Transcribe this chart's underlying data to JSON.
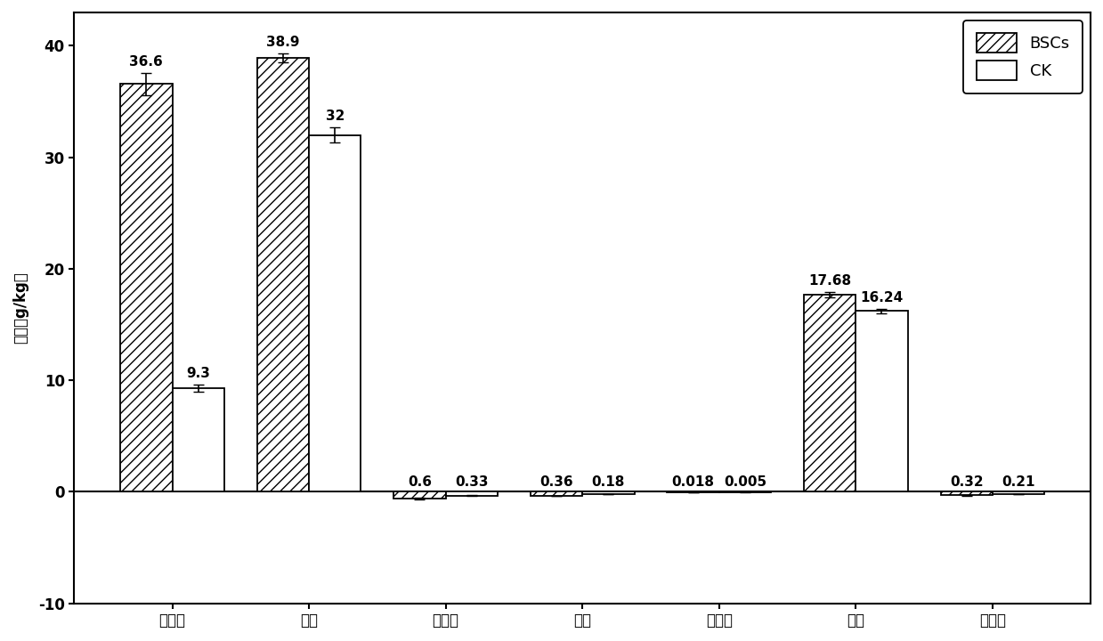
{
  "categories": [
    "有机质",
    "全氮",
    "速效氮",
    "全磷",
    "速效磷",
    "全钒",
    "速效钒"
  ],
  "bsc_values": [
    36.6,
    38.9,
    0.6,
    0.36,
    0.018,
    17.68,
    0.32
  ],
  "ck_values": [
    9.3,
    32.0,
    0.33,
    0.18,
    0.005,
    16.24,
    0.21
  ],
  "bsc_display": [
    36.6,
    38.9,
    -0.6,
    -0.36,
    -0.018,
    17.68,
    -0.32
  ],
  "ck_display": [
    9.3,
    32.0,
    -0.33,
    -0.18,
    -0.005,
    16.24,
    -0.21
  ],
  "bsc_errors": [
    1.0,
    0.4,
    0.05,
    0.03,
    0.002,
    0.25,
    0.025
  ],
  "ck_errors": [
    0.35,
    0.7,
    0.02,
    0.015,
    0.001,
    0.2,
    0.015
  ],
  "bsc_labels": [
    "36.6",
    "38.9",
    "0.6",
    "0.36",
    "0.018",
    "17.68",
    "0.32"
  ],
  "ck_labels": [
    "9.3",
    "32",
    "0.33",
    "0.18",
    "0.005",
    "16.24",
    "0.21"
  ],
  "ylabel": "养分（g/kg）",
  "ylim": [
    -10,
    43
  ],
  "yticks": [
    -10,
    0,
    10,
    20,
    30,
    40
  ],
  "bsc_hatch": "///",
  "bsc_facecolor": "#ffffff",
  "bsc_edgecolor": "#000000",
  "ck_facecolor": "#ffffff",
  "ck_edgecolor": "#000000",
  "legend_bsc": "BSCs",
  "legend_ck": "CK",
  "bar_width": 0.38,
  "background_color": "#ffffff",
  "label_fontsize": 11,
  "tick_fontsize": 12,
  "legend_fontsize": 13,
  "axis_linewidth": 1.5
}
